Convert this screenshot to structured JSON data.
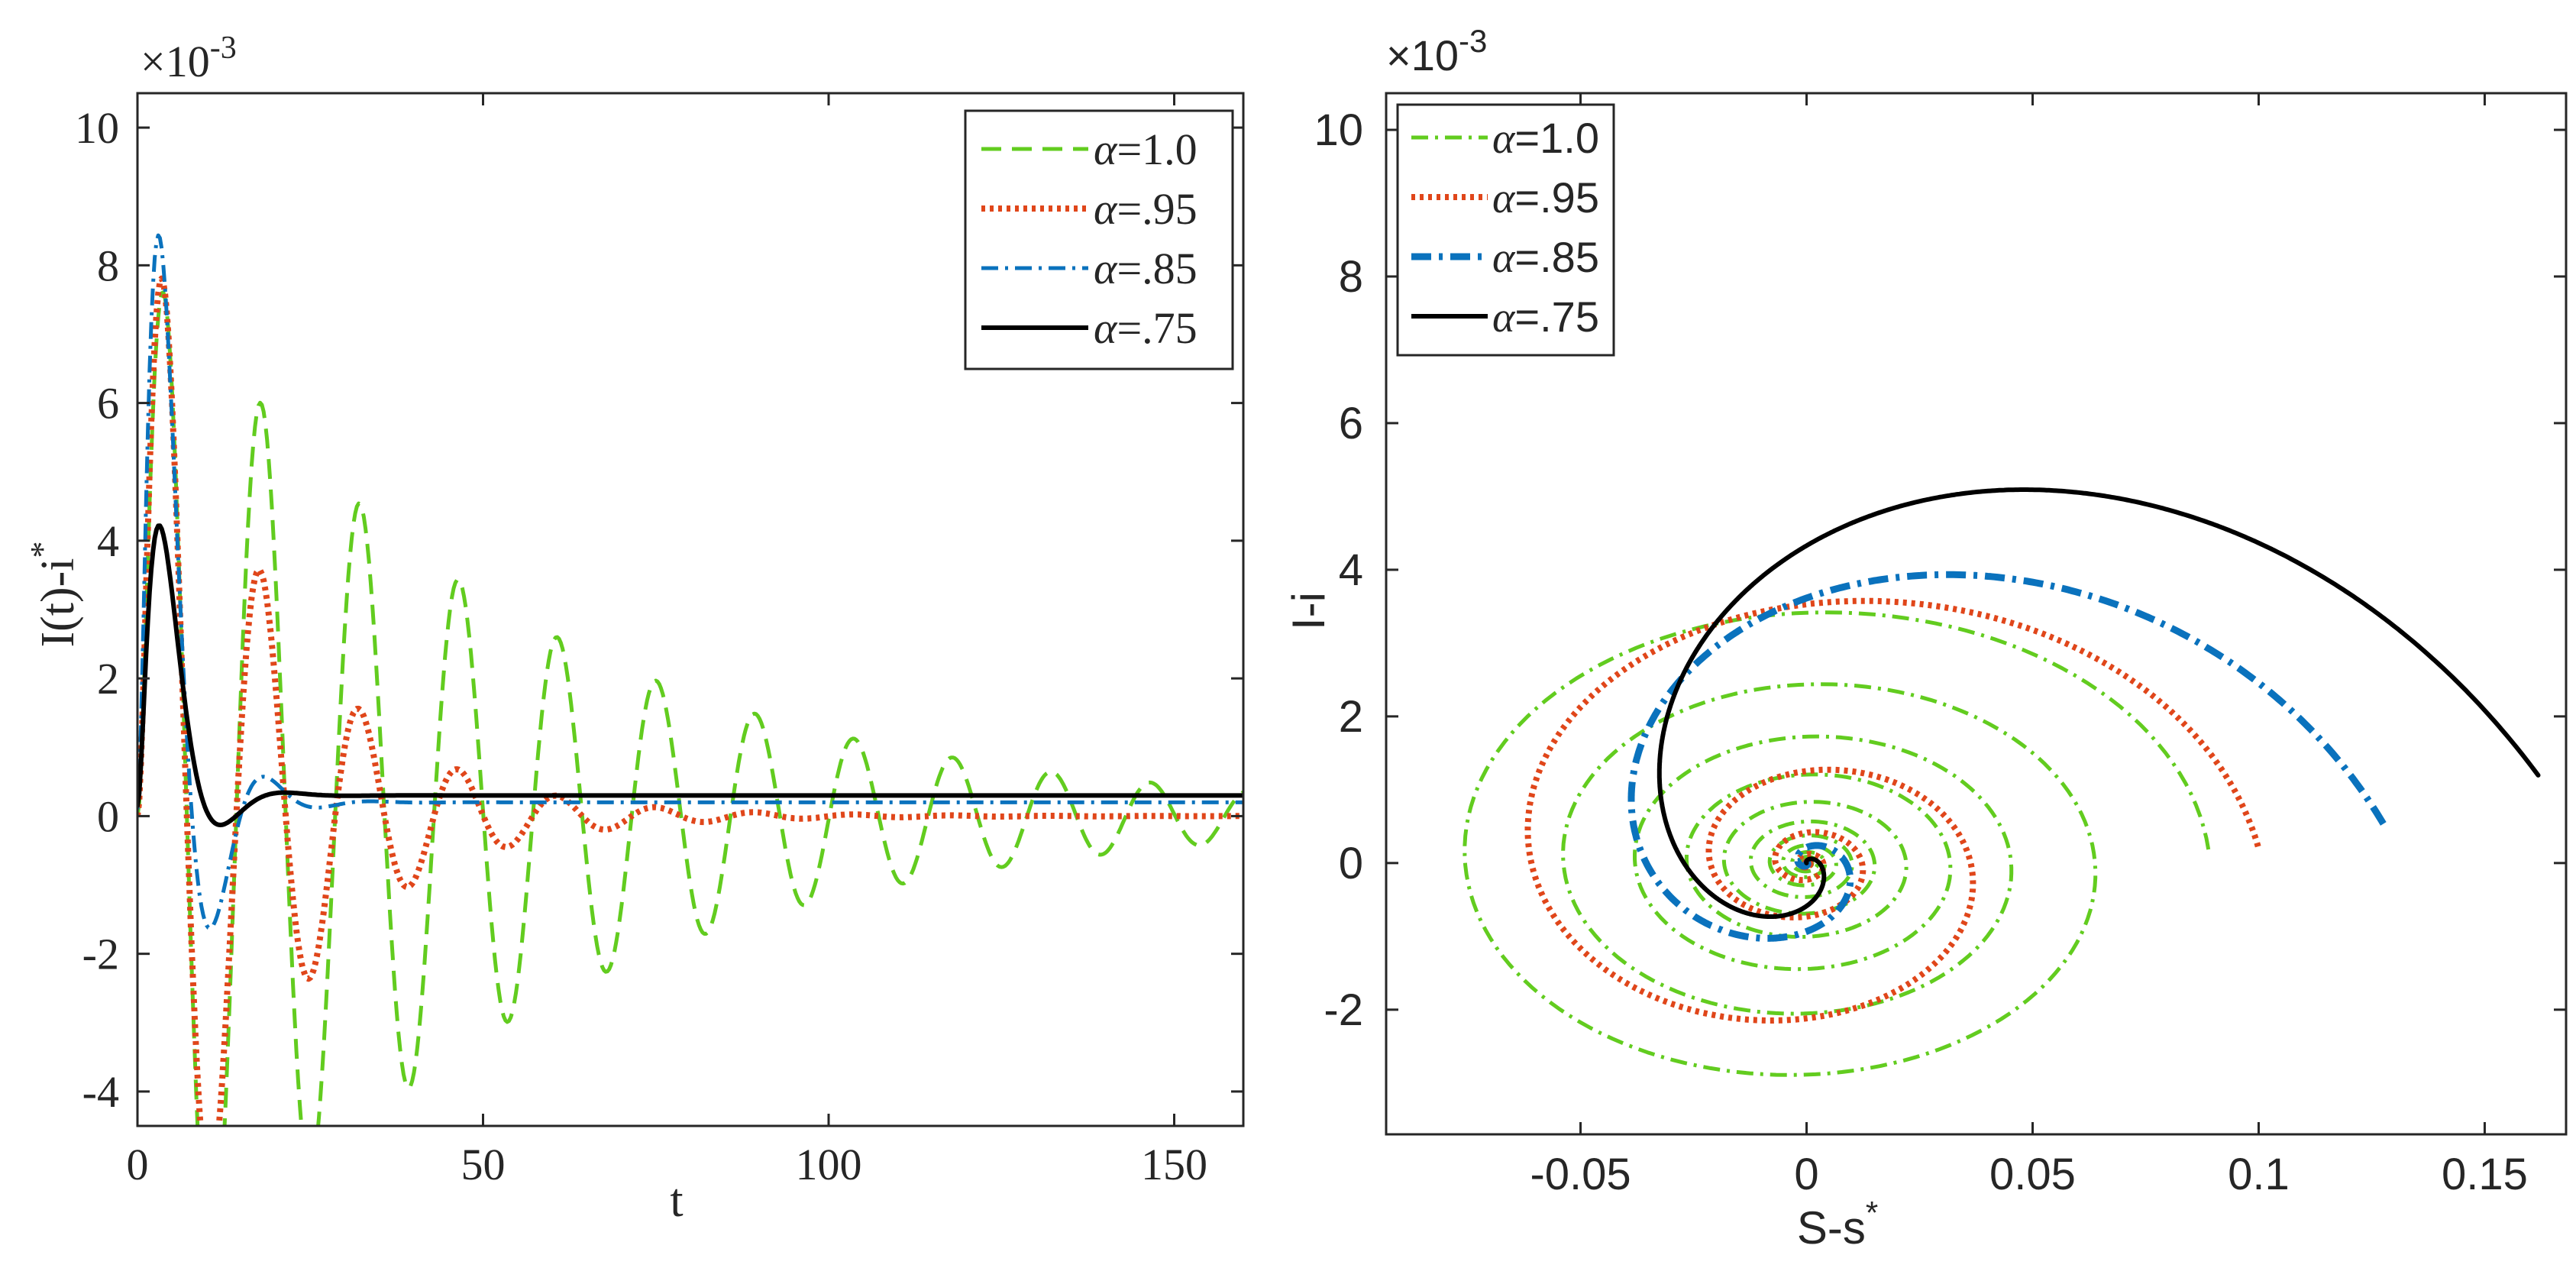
{
  "colors": {
    "green": "#62cc1f",
    "orange": "#e0461a",
    "blue": "#0a72bd",
    "black": "#000000"
  },
  "chart_data": [
    {
      "type": "line",
      "xlabel": "t",
      "ylabel": "I(t)-i",
      "ylabel_sup": "*",
      "xlim": [
        0,
        160
      ],
      "ylim": [
        -0.0045,
        0.0105
      ],
      "xticks": [
        0,
        50,
        100,
        150
      ],
      "xtick_labels": [
        "0",
        "50",
        "100",
        "150"
      ],
      "yticks": [
        -0.004,
        -0.002,
        0,
        0.002,
        0.004,
        0.006,
        0.008,
        0.01
      ],
      "ytick_labels": [
        "-4",
        "-2",
        "0",
        "2",
        "4",
        "6",
        "8",
        "10"
      ],
      "exponent_label": "×10",
      "exponent_sup": "-3",
      "legend_position": "top-right",
      "series": [
        {
          "name": "α=1.0",
          "symbol": "α",
          "label_rest": "=1.0",
          "style": "dashed",
          "color": "#62cc1f",
          "model": {
            "amp": 0.0085,
            "decay": 0.0195,
            "period": 14.3,
            "offset": 0.0
          }
        },
        {
          "name": "α=.95",
          "symbol": "α",
          "label_rest": "=.95",
          "style": "dotted",
          "color": "#e0461a",
          "model": {
            "amp": 0.01,
            "decay": 0.058,
            "period": 14.3,
            "offset": 0.0
          }
        },
        {
          "name": "α=.85",
          "symbol": "α",
          "label_rest": "=.85",
          "style": "dashdot",
          "color": "#0a72bd",
          "model": {
            "amp": 0.0175,
            "decay": 0.205,
            "period": 15.5,
            "offset": 0.0001
          }
        },
        {
          "name": "α=.75",
          "symbol": "α",
          "label_rest": "=.75",
          "style": "solid",
          "color": "#000000",
          "model": {
            "amp": 0.0106,
            "decay": 0.25,
            "period": 18.5,
            "offset": 0.00015
          }
        }
      ]
    },
    {
      "type": "line",
      "xlabel": "S-s",
      "xlabel_sup": "*",
      "ylabel": "I-i",
      "xlim": [
        -0.093,
        0.168
      ],
      "ylim": [
        -0.0037,
        0.0105
      ],
      "xticks": [
        -0.05,
        0,
        0.05,
        0.1,
        0.15
      ],
      "xtick_labels": [
        "-0.05",
        "0",
        "0.05",
        "0.1",
        "0.15"
      ],
      "yticks": [
        -0.002,
        0,
        0.002,
        0.004,
        0.006,
        0.008,
        0.01
      ],
      "ytick_labels": [
        "-2",
        "0",
        "2",
        "4",
        "6",
        "8",
        "10"
      ],
      "exponent_label": "×10",
      "exponent_sup": "-3",
      "legend_position": "top-left",
      "series": [
        {
          "name": "α=1.0",
          "symbol": "α",
          "label_rest": "=1.0",
          "style": "dashdot",
          "color": "#62cc1f",
          "spiral": {
            "start": [
              0.089,
              0.0003
            ],
            "r0x": 0.089,
            "r0y": 0.0037,
            "turns": 12,
            "shrink": 0.78,
            "start_angle": 0.05
          }
        },
        {
          "name": "α=.95",
          "symbol": "α",
          "label_rest": "=.95",
          "style": "dotted",
          "color": "#e0461a",
          "spiral": {
            "start": [
              0.1,
              0.0004
            ],
            "r0x": 0.1,
            "r0y": 0.0045,
            "turns": 5,
            "shrink": 0.45,
            "start_angle": 0.05
          }
        },
        {
          "name": "α=.85",
          "symbol": "α",
          "label_rest": "=.85",
          "style": "dashdot-thick",
          "color": "#0a72bd",
          "spiral": {
            "start": [
              0.128,
              0.0008
            ],
            "r0x": 0.128,
            "r0y": 0.0067,
            "turns": 2.2,
            "shrink": 0.12,
            "start_angle": 0.08
          }
        },
        {
          "name": "α=.75",
          "symbol": "α",
          "label_rest": "=.75",
          "style": "solid",
          "color": "#000000",
          "spiral": {
            "start": [
              0.163,
              0.0018
            ],
            "r0x": 0.163,
            "r0y": 0.01,
            "turns": 1.35,
            "shrink": 0.06,
            "start_angle": 0.12
          }
        }
      ]
    }
  ]
}
